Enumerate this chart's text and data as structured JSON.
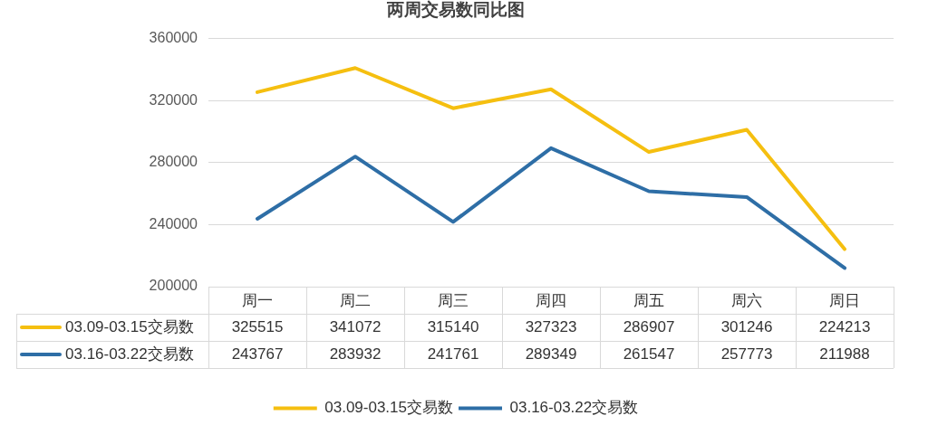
{
  "chart_data": {
    "type": "line",
    "title": "两周交易数同比图",
    "categories": [
      "周一",
      "周二",
      "周三",
      "周四",
      "周五",
      "周六",
      "周日"
    ],
    "series": [
      {
        "name": "03.09-03.15交易数",
        "color": "#f5bf10",
        "values": [
          325515,
          341072,
          315140,
          327323,
          286907,
          301246,
          224213
        ]
      },
      {
        "name": "03.16-03.22交易数",
        "color": "#2e6ea6",
        "values": [
          243767,
          283932,
          241761,
          289349,
          261547,
          257773,
          211988
        ]
      }
    ],
    "ylim": [
      200000,
      360000
    ],
    "yticks": [
      200000,
      240000,
      280000,
      320000,
      360000
    ],
    "grid": "y",
    "legend": "bottom",
    "marker": "none",
    "line_style": "solid",
    "data_labels": true
  }
}
